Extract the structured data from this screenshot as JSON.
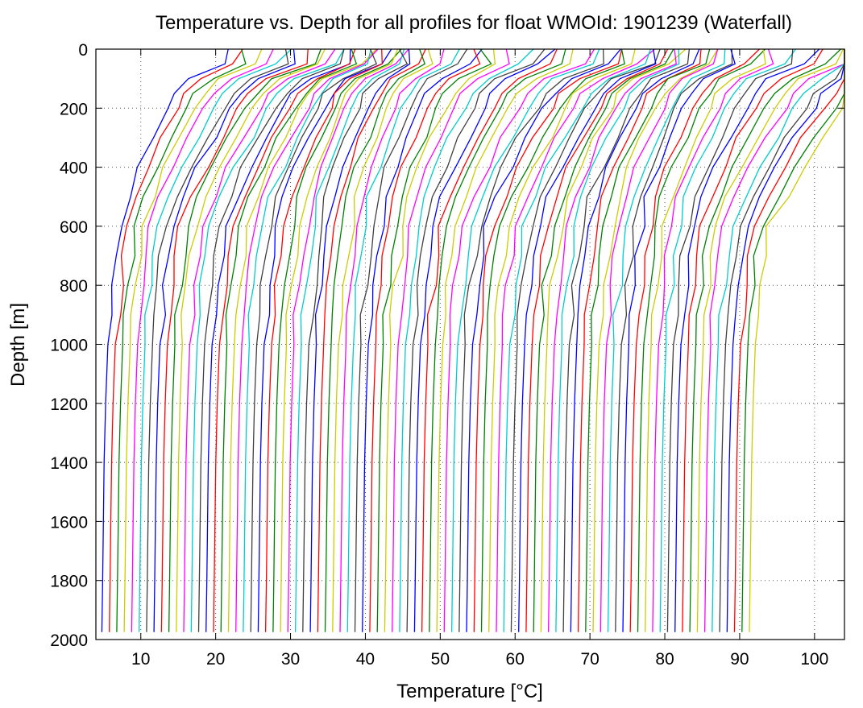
{
  "chart_data": {
    "type": "line",
    "title": "Temperature vs. Depth for all profiles for float WMOId: 1901239 (Waterfall)",
    "xlabel": "Temperature [°C]",
    "ylabel": "Depth [m]",
    "xlim": [
      4,
      104
    ],
    "ylim": [
      0,
      2000
    ],
    "y_reversed": true,
    "grid": "dotted",
    "x_ticks": [
      10,
      20,
      30,
      40,
      50,
      60,
      70,
      80,
      90,
      100
    ],
    "y_ticks": [
      0,
      200,
      400,
      600,
      800,
      1000,
      1200,
      1400,
      1600,
      1800,
      2000
    ],
    "color_cycle": [
      "#0000ff",
      "#ff0000",
      "#008000",
      "#cccc00",
      "#ff00ff",
      "#00cccc",
      "#404040"
    ],
    "waterfall_offset_per_profile": 1.0,
    "profile_count": 88,
    "depth_levels": [
      0,
      50,
      100,
      150,
      200,
      300,
      400,
      500,
      600,
      700,
      800,
      900,
      1000,
      1200,
      1400,
      1600,
      1800,
      1975
    ],
    "base_profile_temperatures": [
      17.0,
      16.5,
      12.0,
      10.0,
      9.0,
      7.0,
      5.2,
      3.6,
      2.7,
      2.1,
      1.6,
      1.2,
      0.9,
      0.6,
      0.4,
      0.3,
      0.2,
      0.1
    ],
    "profile_start_temperatures_at_2000m": [
      4.8,
      91.3
    ]
  }
}
